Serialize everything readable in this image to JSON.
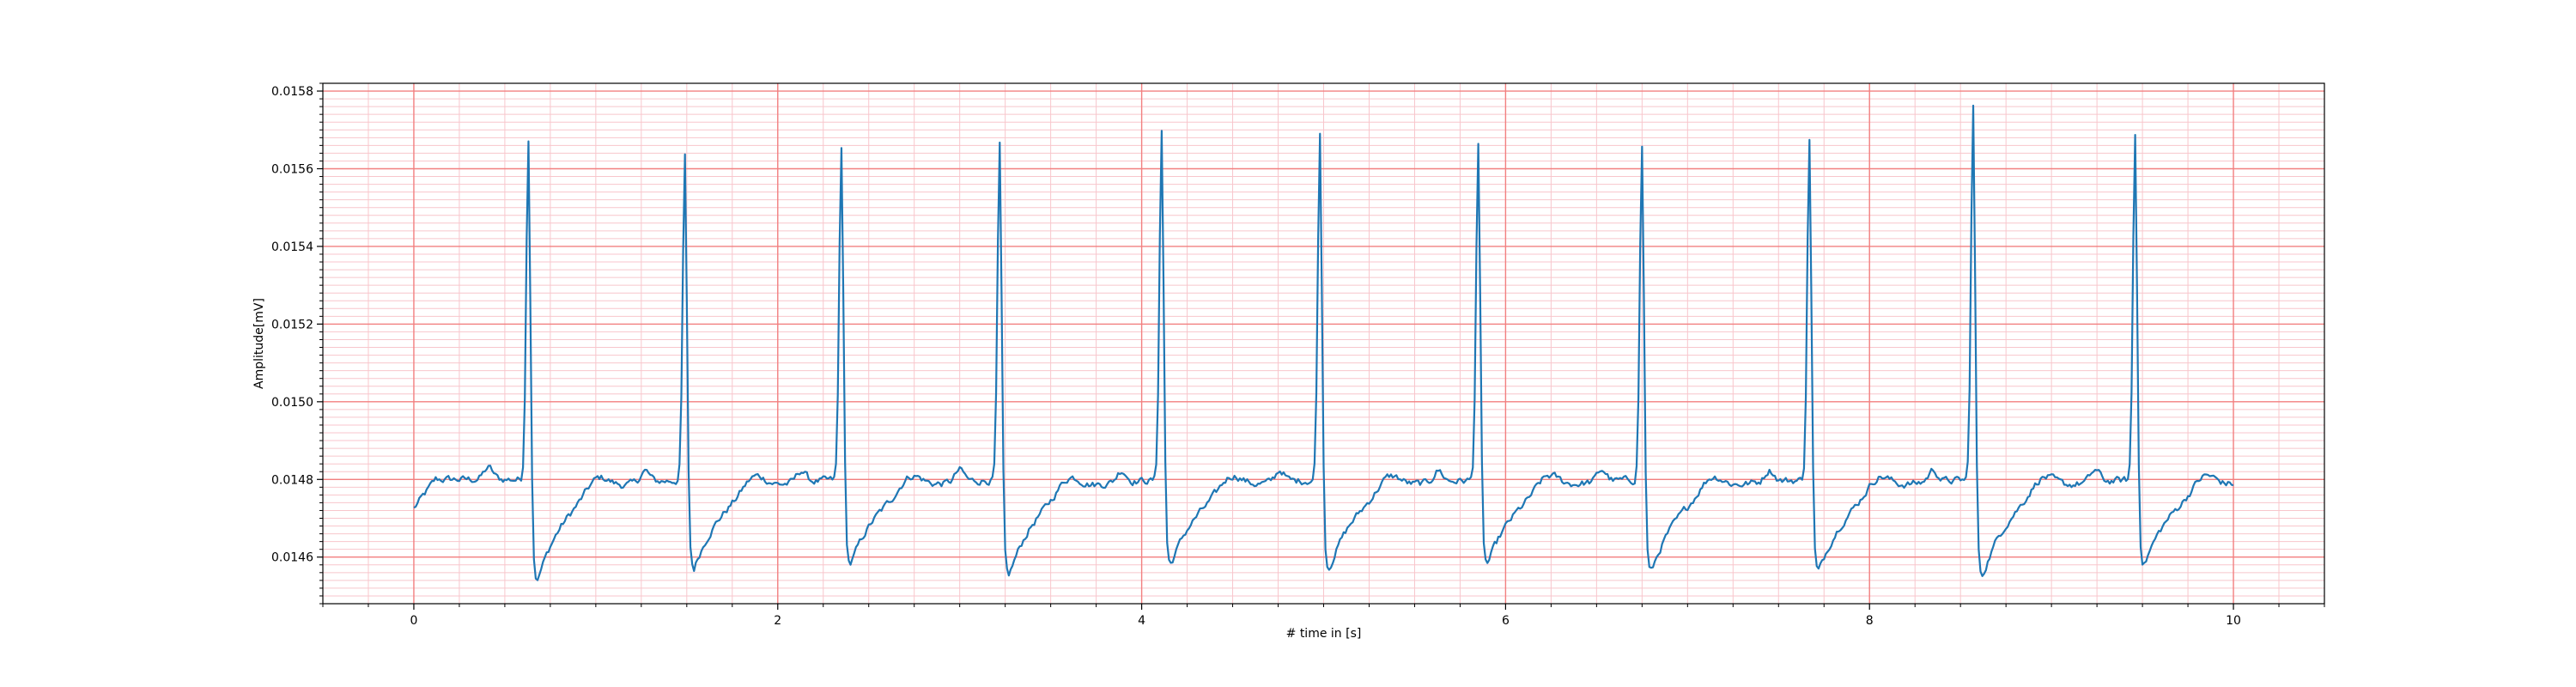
{
  "chart_data": {
    "type": "line",
    "title": "",
    "xlabel": "# time in [s]",
    "ylabel": "Amplitude[mV]",
    "xlim": [
      -0.5,
      10.5
    ],
    "ylim": [
      0.01448,
      0.01582
    ],
    "xticks": [
      0,
      2,
      4,
      6,
      8,
      10
    ],
    "xtick_labels": [
      "0",
      "2",
      "4",
      "6",
      "8",
      "10"
    ],
    "yticks": [
      0.0146,
      0.0148,
      0.015,
      0.0152,
      0.0154,
      0.0156,
      0.0158
    ],
    "ytick_labels": [
      "0.0146",
      "0.0148",
      "0.0150",
      "0.0152",
      "0.0154",
      "0.0156",
      "0.0158"
    ],
    "grid": {
      "major": true,
      "minor": true,
      "major_color": "#f28080",
      "minor_color": "#f8c6cc"
    },
    "line_color": "#1f77b4",
    "sampling_interval_s": 0.01,
    "series": [
      {
        "x_start": 0,
        "x_end": 10,
        "baseline": 0.0148,
        "r_peaks": [
          {
            "t": 0.63,
            "peak": 0.01568,
            "trough": 0.01454
          },
          {
            "t": 1.49,
            "peak": 0.01563,
            "trough": 0.01457
          },
          {
            "t": 2.35,
            "peak": 0.01566,
            "trough": 0.01458
          },
          {
            "t": 3.22,
            "peak": 0.01566,
            "trough": 0.01455
          },
          {
            "t": 4.11,
            "peak": 0.0157,
            "trough": 0.01458
          },
          {
            "t": 4.98,
            "peak": 0.01569,
            "trough": 0.01457
          },
          {
            "t": 5.85,
            "peak": 0.01566,
            "trough": 0.01458
          },
          {
            "t": 6.75,
            "peak": 0.01566,
            "trough": 0.01456
          },
          {
            "t": 7.67,
            "peak": 0.01568,
            "trough": 0.01456
          },
          {
            "t": 8.57,
            "peak": 0.01576,
            "trough": 0.01455
          },
          {
            "t": 9.46,
            "peak": 0.01569,
            "trough": 0.01458
          }
        ]
      }
    ]
  }
}
